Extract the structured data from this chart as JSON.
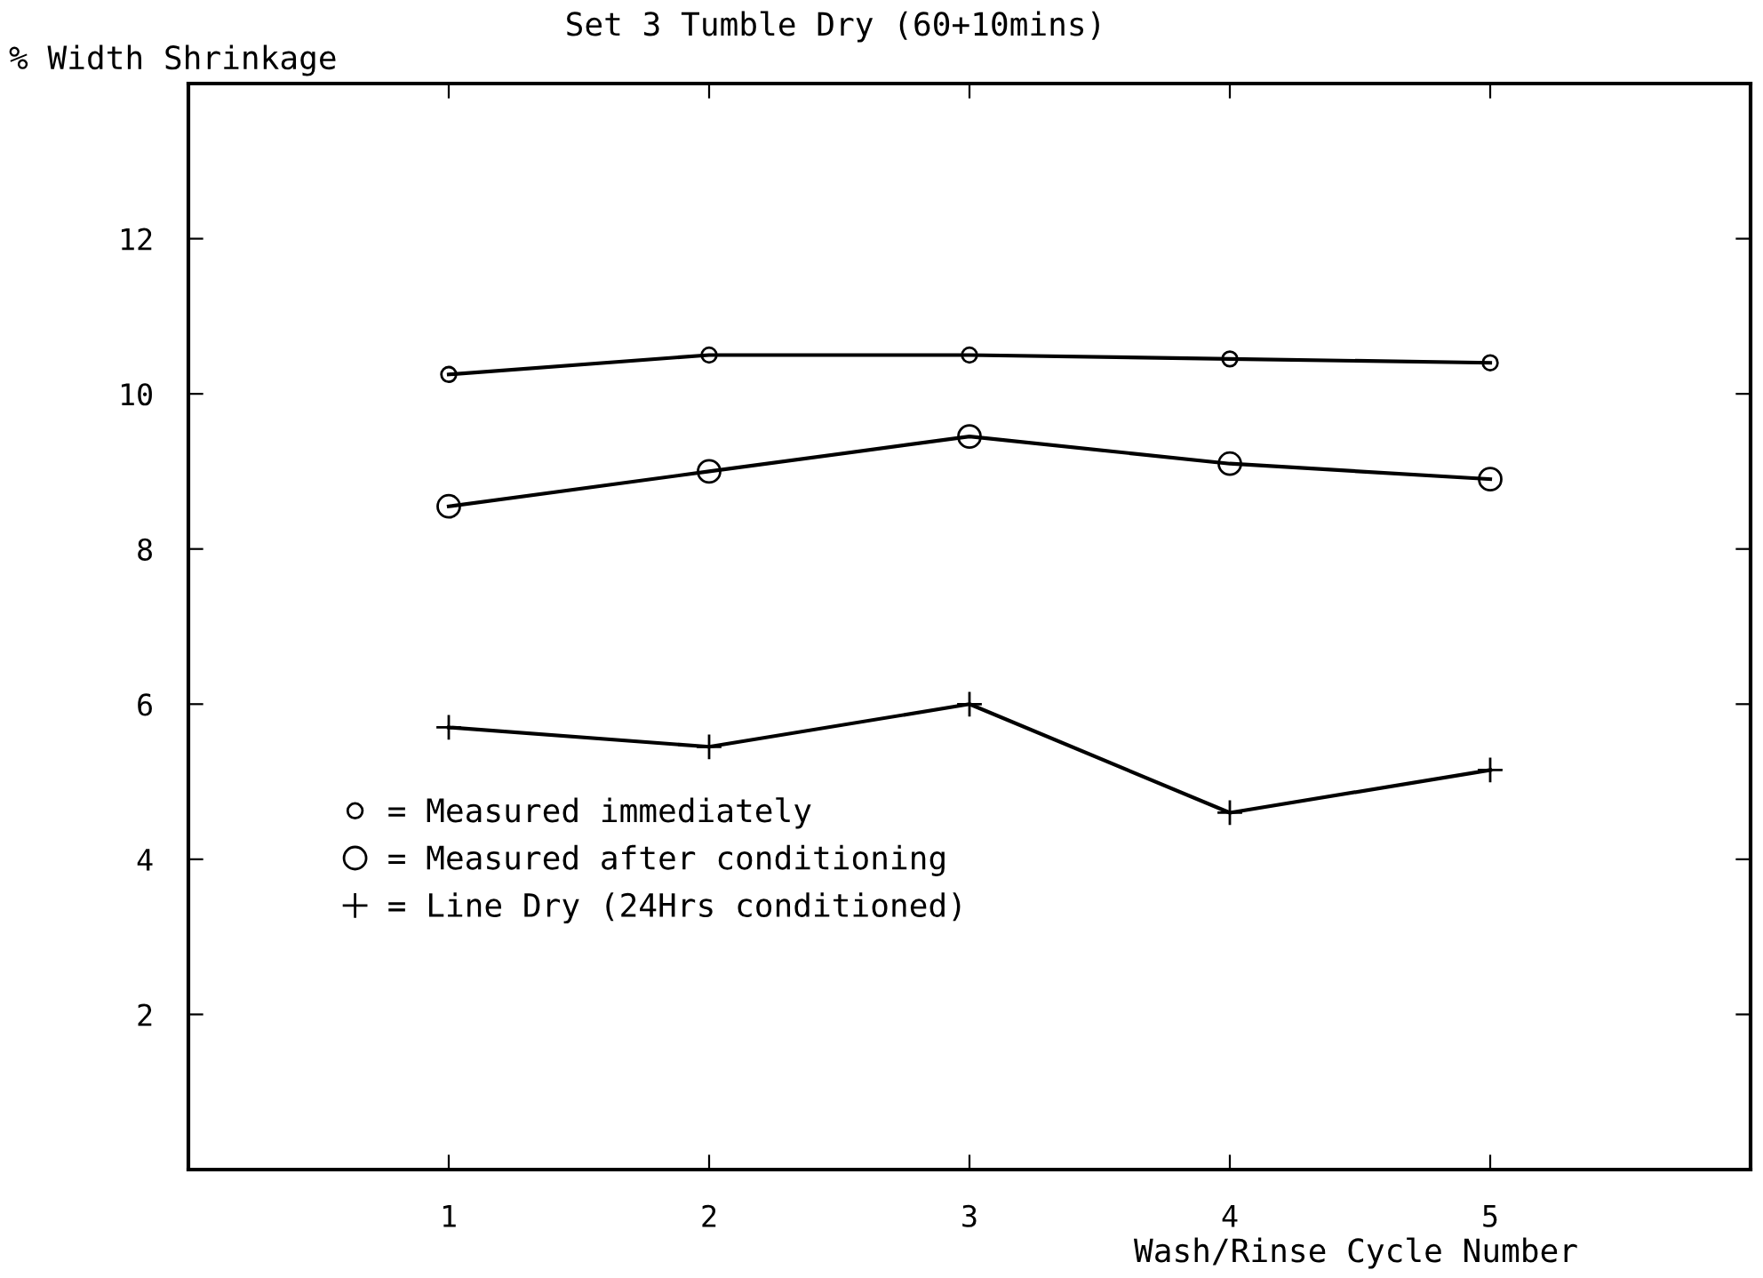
{
  "chart_data": {
    "type": "line",
    "title": "Set 3 Tumble Dry (60+10mins)",
    "xlabel": "Wash/Rinse Cycle Number",
    "ylabel": "% Width Shrinkage",
    "x": [
      1,
      2,
      3,
      4,
      5
    ],
    "xlim": [
      0,
      6
    ],
    "xticks": [
      1,
      2,
      3,
      4,
      5
    ],
    "ylim": [
      0,
      14
    ],
    "yticks": [
      2,
      4,
      6,
      8,
      10,
      12
    ],
    "series": [
      {
        "name": "= Measured immediately",
        "color": "#000000",
        "marker": "circle",
        "values": [
          10.25,
          10.5,
          10.5,
          10.45,
          10.4
        ]
      },
      {
        "name": "= Measured after conditioning",
        "color": "#000000",
        "marker": "circle",
        "values": [
          8.55,
          9.0,
          9.45,
          9.1,
          8.9
        ]
      },
      {
        "name": "= Line Dry (24Hrs conditioned)",
        "color": "#000000",
        "marker": "cross",
        "values": [
          5.7,
          5.45,
          6.0,
          4.6,
          5.15
        ]
      }
    ],
    "grid": false,
    "legend": "bottom left",
    "line_style": "solid"
  }
}
